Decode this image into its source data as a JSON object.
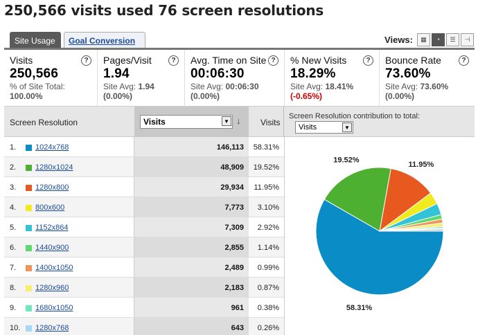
{
  "page_title": "250,566 visits used 76 screen resolutions",
  "tabs": {
    "site_usage": "Site Usage",
    "goal_conversion": "Goal Conversion"
  },
  "views": {
    "label": "Views:",
    "options": [
      "table-icon",
      "pie-icon",
      "performance-icon",
      "comparison-icon"
    ],
    "active": "pie-icon"
  },
  "metrics": [
    {
      "label": "Visits",
      "value": "250,566",
      "sub1": "% of Site Total:",
      "sub2": "100.00%"
    },
    {
      "label": "Pages/Visit",
      "value": "1.94",
      "sub1_prefix": "Site Avg: ",
      "sub1_val": "1.94",
      "sub2": "(0.00%)"
    },
    {
      "label": "Avg. Time on Site",
      "value": "00:06:30",
      "sub1_prefix": "Site Avg: ",
      "sub1_val": "00:06:30",
      "sub2": "(0.00%)"
    },
    {
      "label": "% New Visits",
      "value": "18.29%",
      "sub1_prefix": "Site Avg: ",
      "sub1_val": "18.41%",
      "sub2": "(-0.65%)"
    },
    {
      "label": "Bounce Rate",
      "value": "73.60%",
      "sub1_prefix": "Site Avg: ",
      "sub1_val": "73.60%",
      "sub2": "(0.00%)"
    }
  ],
  "help_glyph": "?",
  "table": {
    "dimension_header": "Screen Resolution",
    "sort_metric": "Visits",
    "visits_header": "Visits",
    "contribution_label": "Screen Resolution contribution to total:",
    "contribution_metric": "Visits",
    "rows": [
      {
        "num": "1.",
        "resolution": "1024x768",
        "visits": "146,113",
        "pct": "58.31%",
        "color": "#0a8dc6"
      },
      {
        "num": "2.",
        "resolution": "1280x1024",
        "visits": "48,909",
        "pct": "19.52%",
        "color": "#4db030"
      },
      {
        "num": "3.",
        "resolution": "1280x800",
        "visits": "29,934",
        "pct": "11.95%",
        "color": "#e8591f"
      },
      {
        "num": "4.",
        "resolution": "800x600",
        "visits": "7,773",
        "pct": "3.10%",
        "color": "#f0ea1e"
      },
      {
        "num": "5.",
        "resolution": "1152x864",
        "visits": "7,309",
        "pct": "2.92%",
        "color": "#33c3d8"
      },
      {
        "num": "6.",
        "resolution": "1440x900",
        "visits": "2,855",
        "pct": "1.14%",
        "color": "#5ed96b"
      },
      {
        "num": "7.",
        "resolution": "1400x1050",
        "visits": "2,489",
        "pct": "0.99%",
        "color": "#f0955a"
      },
      {
        "num": "8.",
        "resolution": "1280x960",
        "visits": "2,183",
        "pct": "0.87%",
        "color": "#f7ef6d"
      },
      {
        "num": "9.",
        "resolution": "1680x1050",
        "visits": "961",
        "pct": "0.38%",
        "color": "#6fe8c2"
      },
      {
        "num": "10.",
        "resolution": "1280x768",
        "visits": "643",
        "pct": "0.26%",
        "color": "#a8d8f5"
      }
    ]
  },
  "chart_data": {
    "type": "pie",
    "categories": [
      "1024x768",
      "1280x1024",
      "1280x800",
      "800x600",
      "1152x864",
      "1440x900",
      "1400x1050",
      "1280x960",
      "1680x1050",
      "1280x768"
    ],
    "values": [
      58.31,
      19.52,
      11.95,
      3.1,
      2.92,
      1.14,
      0.99,
      0.87,
      0.38,
      0.26
    ],
    "other_value": 0.56,
    "other_color": "#cfcfcf",
    "colors": [
      "#0a8dc6",
      "#4db030",
      "#e8591f",
      "#f0ea1e",
      "#33c3d8",
      "#5ed96b",
      "#f0955a",
      "#f7ef6d",
      "#6fe8c2",
      "#a8d8f5"
    ],
    "labels": [
      "58.31%",
      "19.52%",
      "11.95%"
    ]
  }
}
